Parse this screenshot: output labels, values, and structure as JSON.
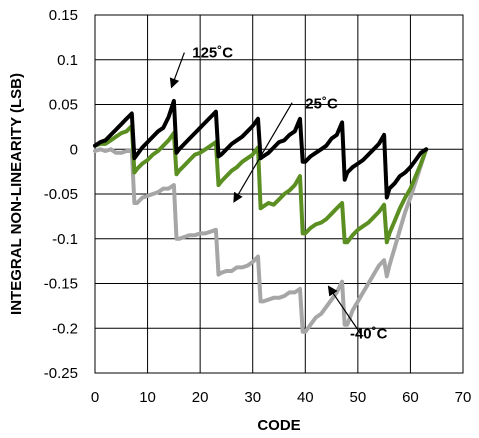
{
  "chart_data": {
    "type": "line",
    "xlabel": "CODE",
    "ylabel": "INTEGRAL NON-LINEARITY (LSB)",
    "xlim": [
      0,
      70
    ],
    "ylim": [
      -0.25,
      0.15
    ],
    "x_ticks": [
      0,
      10,
      20,
      30,
      40,
      50,
      60,
      70
    ],
    "y_ticks": [
      0.15,
      0.1,
      0.05,
      0,
      -0.05,
      -0.1,
      -0.15,
      -0.2,
      -0.25
    ],
    "x_tick_labels": [
      "0",
      "10",
      "20",
      "30",
      "40",
      "50",
      "60",
      "70"
    ],
    "y_tick_labels": [
      "0.15",
      "0.1",
      "0.05",
      "0",
      "-0.05",
      "-0.1",
      "-0.15",
      "-0.2",
      "-0.25"
    ],
    "grid": true,
    "series": [
      {
        "name": "125˚C",
        "color": "#000000",
        "points": [
          [
            0,
            0.004
          ],
          [
            1,
            0.008
          ],
          [
            2,
            0.01
          ],
          [
            3,
            0.016
          ],
          [
            4,
            0.022
          ],
          [
            5,
            0.028
          ],
          [
            6,
            0.034
          ],
          [
            7,
            0.04
          ],
          [
            7.5,
            -0.01
          ],
          [
            8,
            -0.006
          ],
          [
            9,
            0.002
          ],
          [
            10,
            0.008
          ],
          [
            11,
            0.014
          ],
          [
            12,
            0.02
          ],
          [
            13,
            0.024
          ],
          [
            14,
            0.036
          ],
          [
            15,
            0.054
          ],
          [
            15.5,
            -0.004
          ],
          [
            16,
            0.0
          ],
          [
            17,
            0.006
          ],
          [
            18,
            0.012
          ],
          [
            19,
            0.018
          ],
          [
            20,
            0.024
          ],
          [
            21,
            0.03
          ],
          [
            22,
            0.036
          ],
          [
            23,
            0.042
          ],
          [
            23.5,
            -0.008
          ],
          [
            24,
            -0.006
          ],
          [
            25,
            0.0
          ],
          [
            26,
            0.006
          ],
          [
            27,
            0.01
          ],
          [
            28,
            0.014
          ],
          [
            29,
            0.02
          ],
          [
            30,
            0.026
          ],
          [
            31,
            0.034
          ],
          [
            31.5,
            -0.01
          ],
          [
            32,
            -0.008
          ],
          [
            33,
            -0.004
          ],
          [
            34,
            0.002
          ],
          [
            35,
            0.008
          ],
          [
            36,
            0.01
          ],
          [
            37,
            0.016
          ],
          [
            38,
            0.02
          ],
          [
            39,
            0.034
          ],
          [
            39.5,
            -0.014
          ],
          [
            40,
            -0.014
          ],
          [
            41,
            -0.008
          ],
          [
            42,
            -0.004
          ],
          [
            43,
            0.0
          ],
          [
            44,
            0.004
          ],
          [
            45,
            0.012
          ],
          [
            46,
            0.016
          ],
          [
            47,
            0.03
          ],
          [
            47.5,
            -0.034
          ],
          [
            48,
            -0.026
          ],
          [
            49,
            -0.02
          ],
          [
            50,
            -0.016
          ],
          [
            51,
            -0.012
          ],
          [
            52,
            -0.006
          ],
          [
            53,
            0.0
          ],
          [
            54,
            0.006
          ],
          [
            55,
            0.016
          ],
          [
            55.5,
            -0.054
          ],
          [
            56,
            -0.044
          ],
          [
            57,
            -0.038
          ],
          [
            58,
            -0.03
          ],
          [
            59,
            -0.026
          ],
          [
            60,
            -0.02
          ],
          [
            61,
            -0.012
          ],
          [
            62,
            -0.004
          ],
          [
            63,
            0.0
          ]
        ]
      },
      {
        "name": "25˚C",
        "color": "#5b8f22",
        "points": [
          [
            0,
            0.004
          ],
          [
            1,
            0.006
          ],
          [
            2,
            0.006
          ],
          [
            3,
            0.01
          ],
          [
            4,
            0.014
          ],
          [
            5,
            0.018
          ],
          [
            6,
            0.02
          ],
          [
            7,
            0.026
          ],
          [
            7.5,
            -0.026
          ],
          [
            8,
            -0.022
          ],
          [
            9,
            -0.016
          ],
          [
            10,
            -0.012
          ],
          [
            11,
            -0.006
          ],
          [
            12,
            -0.002
          ],
          [
            13,
            0.004
          ],
          [
            14,
            0.01
          ],
          [
            15,
            0.018
          ],
          [
            15.5,
            -0.028
          ],
          [
            16,
            -0.024
          ],
          [
            17,
            -0.018
          ],
          [
            18,
            -0.012
          ],
          [
            19,
            -0.006
          ],
          [
            20,
            -0.004
          ],
          [
            21,
            0.0
          ],
          [
            22,
            0.004
          ],
          [
            23,
            0.008
          ],
          [
            23.5,
            -0.04
          ],
          [
            24,
            -0.036
          ],
          [
            25,
            -0.03
          ],
          [
            26,
            -0.024
          ],
          [
            27,
            -0.02
          ],
          [
            28,
            -0.014
          ],
          [
            29,
            -0.01
          ],
          [
            30,
            -0.006
          ],
          [
            31,
            0.002
          ],
          [
            31.5,
            -0.066
          ],
          [
            32,
            -0.064
          ],
          [
            33,
            -0.06
          ],
          [
            34,
            -0.062
          ],
          [
            35,
            -0.056
          ],
          [
            36,
            -0.05
          ],
          [
            37,
            -0.046
          ],
          [
            38,
            -0.04
          ],
          [
            39,
            -0.03
          ],
          [
            39.5,
            -0.094
          ],
          [
            40,
            -0.094
          ],
          [
            41,
            -0.088
          ],
          [
            42,
            -0.084
          ],
          [
            43,
            -0.082
          ],
          [
            44,
            -0.078
          ],
          [
            45,
            -0.072
          ],
          [
            46,
            -0.066
          ],
          [
            47,
            -0.06
          ],
          [
            47.5,
            -0.104
          ],
          [
            48,
            -0.104
          ],
          [
            49,
            -0.096
          ],
          [
            50,
            -0.09
          ],
          [
            51,
            -0.086
          ],
          [
            52,
            -0.082
          ],
          [
            53,
            -0.076
          ],
          [
            54,
            -0.07
          ],
          [
            55,
            -0.062
          ],
          [
            55.5,
            -0.104
          ],
          [
            56,
            -0.094
          ],
          [
            57,
            -0.08
          ],
          [
            58,
            -0.066
          ],
          [
            59,
            -0.054
          ],
          [
            60,
            -0.044
          ],
          [
            61,
            -0.03
          ],
          [
            62,
            -0.016
          ],
          [
            63,
            0.0
          ]
        ]
      },
      {
        "name": "-40˚C",
        "color": "#a6a6a6",
        "points": [
          [
            0,
            -0.002
          ],
          [
            1,
            0.0
          ],
          [
            2,
            -0.002
          ],
          [
            3,
            0.0
          ],
          [
            4,
            -0.004
          ],
          [
            5,
            -0.004
          ],
          [
            6,
            -0.002
          ],
          [
            7,
            -0.002
          ],
          [
            7.5,
            -0.06
          ],
          [
            8,
            -0.06
          ],
          [
            9,
            -0.054
          ],
          [
            10,
            -0.052
          ],
          [
            11,
            -0.05
          ],
          [
            12,
            -0.048
          ],
          [
            13,
            -0.044
          ],
          [
            14,
            -0.044
          ],
          [
            15,
            -0.04
          ],
          [
            15.5,
            -0.1
          ],
          [
            16,
            -0.1
          ],
          [
            17,
            -0.098
          ],
          [
            18,
            -0.096
          ],
          [
            19,
            -0.096
          ],
          [
            20,
            -0.094
          ],
          [
            21,
            -0.094
          ],
          [
            22,
            -0.092
          ],
          [
            23,
            -0.09
          ],
          [
            23.5,
            -0.14
          ],
          [
            24,
            -0.138
          ],
          [
            25,
            -0.136
          ],
          [
            26,
            -0.136
          ],
          [
            27,
            -0.132
          ],
          [
            28,
            -0.132
          ],
          [
            29,
            -0.13
          ],
          [
            30,
            -0.126
          ],
          [
            31,
            -0.12
          ],
          [
            31.5,
            -0.17
          ],
          [
            32,
            -0.17
          ],
          [
            33,
            -0.168
          ],
          [
            34,
            -0.166
          ],
          [
            35,
            -0.166
          ],
          [
            36,
            -0.164
          ],
          [
            37,
            -0.16
          ],
          [
            38,
            -0.16
          ],
          [
            39,
            -0.156
          ],
          [
            39.5,
            -0.204
          ],
          [
            40,
            -0.204
          ],
          [
            41,
            -0.196
          ],
          [
            42,
            -0.188
          ],
          [
            43,
            -0.184
          ],
          [
            44,
            -0.176
          ],
          [
            45,
            -0.168
          ],
          [
            46,
            -0.16
          ],
          [
            47,
            -0.148
          ],
          [
            47.5,
            -0.196
          ],
          [
            48,
            -0.196
          ],
          [
            49,
            -0.18
          ],
          [
            50,
            -0.17
          ],
          [
            51,
            -0.16
          ],
          [
            52,
            -0.15
          ],
          [
            53,
            -0.14
          ],
          [
            54,
            -0.13
          ],
          [
            55,
            -0.124
          ],
          [
            55.5,
            -0.142
          ],
          [
            56,
            -0.13
          ],
          [
            57,
            -0.11
          ],
          [
            58,
            -0.09
          ],
          [
            59,
            -0.07
          ],
          [
            60,
            -0.054
          ],
          [
            61,
            -0.036
          ],
          [
            62,
            -0.018
          ],
          [
            63,
            0.0
          ]
        ]
      }
    ],
    "annotations": [
      {
        "text": "125˚C",
        "label_at": [
          18.5,
          0.108
        ],
        "arrow_from": [
          17,
          0.108
        ],
        "arrow_to": [
          14.6,
          0.07
        ]
      },
      {
        "text": "25˚C",
        "label_at": [
          40,
          0.051
        ],
        "arrow_from": [
          37.5,
          0.052
        ],
        "arrow_to": [
          26.5,
          -0.058
        ]
      },
      {
        "text": "-40˚C",
        "label_at": [
          48.5,
          -0.206
        ],
        "arrow_from": [
          50.5,
          -0.206
        ],
        "arrow_to": [
          44.5,
          -0.154
        ]
      }
    ]
  }
}
